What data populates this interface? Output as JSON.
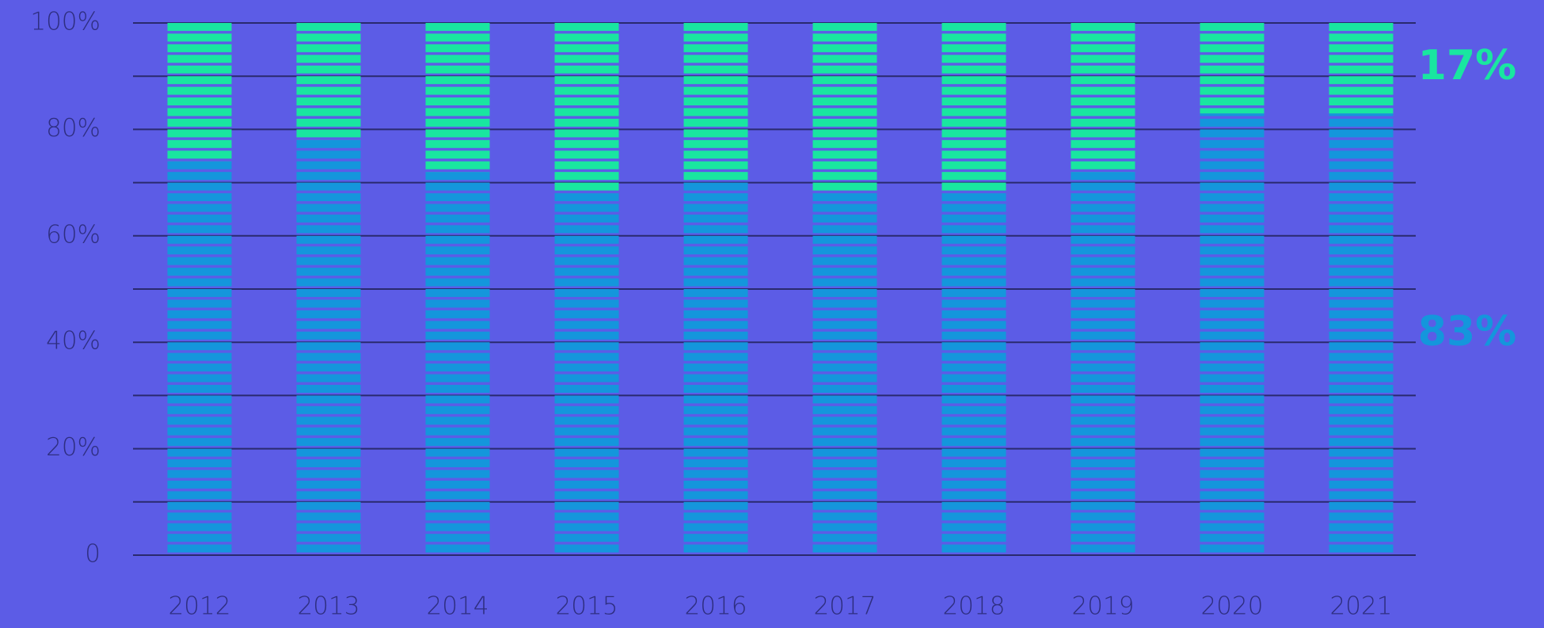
{
  "chart_data": {
    "type": "stacked_bar",
    "categories": [
      "2012",
      "2013",
      "2014",
      "2015",
      "2016",
      "2017",
      "2018",
      "2019",
      "2020",
      "2021"
    ],
    "series": [
      {
        "color": "#1496dc",
        "values": [
          74,
          78,
          72,
          68,
          70,
          68,
          68,
          72,
          83,
          83
        ]
      },
      {
        "color": "#19e6a0",
        "values": [
          26,
          22,
          28,
          32,
          30,
          32,
          32,
          28,
          17,
          17
        ]
      }
    ],
    "value_labels": {
      "series_index_values": null
    },
    "ylim": [
      0,
      100
    ],
    "yticks": [
      0,
      {
        "value": 20,
        "label": "20%"
      },
      {
        "value": 40,
        "label": "40%"
      },
      {
        "value": 60,
        "label": "60%"
      },
      {
        "value": 80,
        "label": "80%"
      },
      {
        "value": 100,
        "label": "100%"
      }
    ],
    "minor_grid": [
      10,
      30,
      50,
      70,
      90
    ],
    "grid": true,
    "highlight_index": 9,
    "end_labels": [
      {
        "series": 0,
        "value": 83,
        "label": "83%"
      },
      {
        "series": 1,
        "value": 17,
        "label": "17%"
      }
    ]
  }
}
